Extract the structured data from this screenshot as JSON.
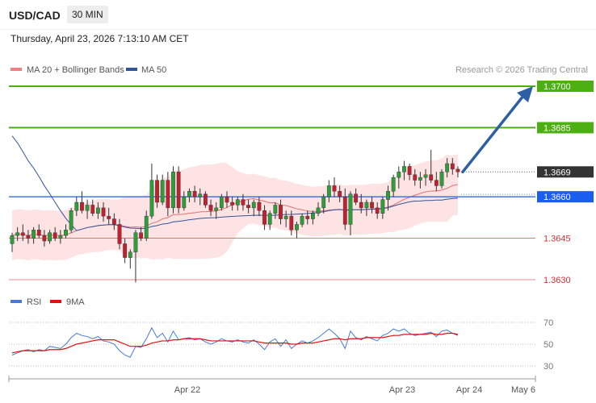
{
  "header": {
    "pair": "USD/CAD",
    "timeframe": "30 MIN"
  },
  "date_text": "Thursday, April 23, 2026 7:13:10 AM CET",
  "legend": {
    "ma20": "MA 20 + Bollinger Bands",
    "ma50": "MA 50",
    "credit": "Research © 2026 Trading Central"
  },
  "levels": [
    {
      "value": "1.3700",
      "kind": "resistance",
      "color": "#4caf12"
    },
    {
      "value": "1.3685",
      "kind": "resistance",
      "color": "#4caf12"
    },
    {
      "value": "1.3669",
      "kind": "last",
      "color": "#333333"
    },
    {
      "value": "1.3660",
      "kind": "pivot",
      "color": "#1a5ef0"
    },
    {
      "value": "1.3645",
      "kind": "support",
      "color": "#e06060"
    },
    {
      "value": "1.3630",
      "kind": "support",
      "color": "#e06060"
    }
  ],
  "rsi_legend": {
    "rsi": "RSI",
    "ma": "9MA"
  },
  "rsi_axis": [
    "70",
    "50",
    "30"
  ],
  "x_axis": [
    "Apr 22",
    "Apr 23",
    "Apr 24",
    "May 6"
  ],
  "colors": {
    "up": "#2e9e3a",
    "down": "#c02030",
    "band": "#fde3e3",
    "arrow": "#2d5fa6",
    "ma50": "#33559a",
    "ma20": "#e07070"
  },
  "chart_data": {
    "type": "candlestick",
    "ylim": [
      1.3625,
      1.3705
    ],
    "ohlc": [
      [
        1.3643,
        1.3647,
        1.364,
        1.3646
      ],
      [
        1.3646,
        1.3649,
        1.3644,
        1.3647
      ],
      [
        1.3647,
        1.365,
        1.3644,
        1.3646
      ],
      [
        1.3646,
        1.3648,
        1.3643,
        1.3645
      ],
      [
        1.3645,
        1.3649,
        1.3643,
        1.3648
      ],
      [
        1.3648,
        1.365,
        1.3645,
        1.3646
      ],
      [
        1.3646,
        1.3648,
        1.3642,
        1.3644
      ],
      [
        1.3644,
        1.3648,
        1.3643,
        1.3647
      ],
      [
        1.3647,
        1.3649,
        1.3644,
        1.3645
      ],
      [
        1.3645,
        1.3648,
        1.3643,
        1.3646
      ],
      [
        1.3646,
        1.365,
        1.3645,
        1.3648
      ],
      [
        1.3648,
        1.3656,
        1.3647,
        1.3655
      ],
      [
        1.3655,
        1.366,
        1.3653,
        1.3658
      ],
      [
        1.3658,
        1.3662,
        1.3654,
        1.3655
      ],
      [
        1.3655,
        1.3659,
        1.3652,
        1.3657
      ],
      [
        1.3657,
        1.3659,
        1.3653,
        1.3654
      ],
      [
        1.3654,
        1.3658,
        1.3652,
        1.3656
      ],
      [
        1.3656,
        1.3658,
        1.3651,
        1.3653
      ],
      [
        1.3653,
        1.3656,
        1.365,
        1.3652
      ],
      [
        1.3652,
        1.3654,
        1.3648,
        1.365
      ],
      [
        1.365,
        1.3652,
        1.3641,
        1.3643
      ],
      [
        1.3643,
        1.3645,
        1.3636,
        1.3638
      ],
      [
        1.3638,
        1.3641,
        1.3634,
        1.364
      ],
      [
        1.364,
        1.3648,
        1.3629,
        1.3647
      ],
      [
        1.3647,
        1.3649,
        1.3644,
        1.3645
      ],
      [
        1.3645,
        1.3655,
        1.3644,
        1.3653
      ],
      [
        1.3653,
        1.3672,
        1.3652,
        1.3666
      ],
      [
        1.3666,
        1.3668,
        1.3656,
        1.3658
      ],
      [
        1.3658,
        1.3668,
        1.3657,
        1.3666
      ],
      [
        1.3666,
        1.3669,
        1.3653,
        1.3656
      ],
      [
        1.3656,
        1.3671,
        1.3654,
        1.3669
      ],
      [
        1.3669,
        1.3671,
        1.3654,
        1.3656
      ],
      [
        1.3656,
        1.3662,
        1.3655,
        1.366
      ],
      [
        1.366,
        1.3663,
        1.3658,
        1.3662
      ],
      [
        1.3662,
        1.3664,
        1.3658,
        1.366
      ],
      [
        1.366,
        1.3663,
        1.3657,
        1.3661
      ],
      [
        1.3661,
        1.3662,
        1.3656,
        1.3657
      ],
      [
        1.3657,
        1.3659,
        1.3653,
        1.3655
      ],
      [
        1.3655,
        1.3658,
        1.3652,
        1.3656
      ],
      [
        1.3656,
        1.3661,
        1.3655,
        1.366
      ],
      [
        1.366,
        1.3662,
        1.3656,
        1.3658
      ],
      [
        1.3658,
        1.366,
        1.3655,
        1.3657
      ],
      [
        1.3657,
        1.366,
        1.3655,
        1.3659
      ],
      [
        1.3659,
        1.3661,
        1.3655,
        1.3657
      ],
      [
        1.3657,
        1.3659,
        1.3654,
        1.3656
      ],
      [
        1.3656,
        1.3659,
        1.3653,
        1.3658
      ],
      [
        1.3658,
        1.366,
        1.3653,
        1.3655
      ],
      [
        1.3655,
        1.3657,
        1.3648,
        1.365
      ],
      [
        1.365,
        1.3655,
        1.3648,
        1.3654
      ],
      [
        1.3654,
        1.3658,
        1.3652,
        1.3657
      ],
      [
        1.3657,
        1.3659,
        1.365,
        1.3652
      ],
      [
        1.3652,
        1.3655,
        1.3649,
        1.3653
      ],
      [
        1.3653,
        1.3655,
        1.3646,
        1.3648
      ],
      [
        1.3648,
        1.3651,
        1.3645,
        1.365
      ],
      [
        1.365,
        1.3654,
        1.3649,
        1.3653
      ],
      [
        1.3653,
        1.3655,
        1.365,
        1.3652
      ],
      [
        1.3652,
        1.3655,
        1.365,
        1.3654
      ],
      [
        1.3654,
        1.3658,
        1.3653,
        1.3656
      ],
      [
        1.3656,
        1.3661,
        1.3654,
        1.366
      ],
      [
        1.366,
        1.3666,
        1.3658,
        1.3664
      ],
      [
        1.3664,
        1.3667,
        1.366,
        1.3662
      ],
      [
        1.3662,
        1.3664,
        1.3658,
        1.366
      ],
      [
        1.366,
        1.3663,
        1.3648,
        1.365
      ],
      [
        1.365,
        1.3662,
        1.3646,
        1.3661
      ],
      [
        1.3661,
        1.3663,
        1.3657,
        1.3658
      ],
      [
        1.3658,
        1.3661,
        1.3654,
        1.3656
      ],
      [
        1.3656,
        1.3659,
        1.3653,
        1.3658
      ],
      [
        1.3658,
        1.366,
        1.3654,
        1.3656
      ],
      [
        1.3656,
        1.3658,
        1.3652,
        1.3654
      ],
      [
        1.3654,
        1.366,
        1.3652,
        1.3659
      ],
      [
        1.3659,
        1.3664,
        1.3655,
        1.3662
      ],
      [
        1.3662,
        1.3668,
        1.366,
        1.3667
      ],
      [
        1.3667,
        1.3671,
        1.3663,
        1.3669
      ],
      [
        1.3669,
        1.3673,
        1.3666,
        1.3671
      ],
      [
        1.3671,
        1.3672,
        1.3666,
        1.3668
      ],
      [
        1.3668,
        1.367,
        1.3664,
        1.3666
      ],
      [
        1.3666,
        1.3669,
        1.3663,
        1.3667
      ],
      [
        1.3667,
        1.367,
        1.3664,
        1.3668
      ],
      [
        1.3668,
        1.3677,
        1.3665,
        1.3666
      ],
      [
        1.3666,
        1.3669,
        1.3662,
        1.3664
      ],
      [
        1.3664,
        1.367,
        1.3663,
        1.3669
      ],
      [
        1.3669,
        1.3674,
        1.3667,
        1.3672
      ],
      [
        1.3672,
        1.3674,
        1.3668,
        1.367
      ],
      [
        1.367,
        1.3671,
        1.3667,
        1.3669
      ]
    ],
    "rsi": [
      40,
      42,
      44,
      45,
      43,
      45,
      44,
      48,
      47,
      46,
      50,
      56,
      60,
      58,
      57,
      55,
      57,
      53,
      52,
      50,
      44,
      40,
      38,
      48,
      47,
      55,
      65,
      56,
      60,
      52,
      62,
      54,
      55,
      56,
      54,
      55,
      52,
      50,
      52,
      55,
      53,
      52,
      54,
      52,
      51,
      54,
      50,
      45,
      52,
      55,
      48,
      54,
      46,
      50,
      53,
      51,
      53,
      56,
      60,
      64,
      60,
      55,
      46,
      62,
      56,
      54,
      57,
      55,
      53,
      58,
      60,
      64,
      62,
      64,
      60,
      58,
      59,
      60,
      61,
      57,
      62,
      63,
      60,
      58
    ],
    "rsi_ma": [
      42,
      43,
      44,
      44,
      44,
      44,
      44,
      45,
      45,
      45,
      46,
      48,
      50,
      51,
      52,
      53,
      54,
      54,
      54,
      54,
      52,
      50,
      48,
      48,
      48,
      49,
      51,
      52,
      53,
      53,
      54,
      54,
      55,
      55,
      55,
      55,
      54,
      53,
      53,
      53,
      53,
      53,
      53,
      53,
      53,
      53,
      52,
      51,
      51,
      51,
      51,
      51,
      50,
      50,
      51,
      51,
      51,
      52,
      53,
      54,
      55,
      55,
      54,
      55,
      55,
      55,
      56,
      56,
      56,
      56,
      57,
      58,
      58,
      59,
      59,
      59,
      59,
      59,
      60,
      59,
      59,
      60,
      60,
      59
    ]
  }
}
